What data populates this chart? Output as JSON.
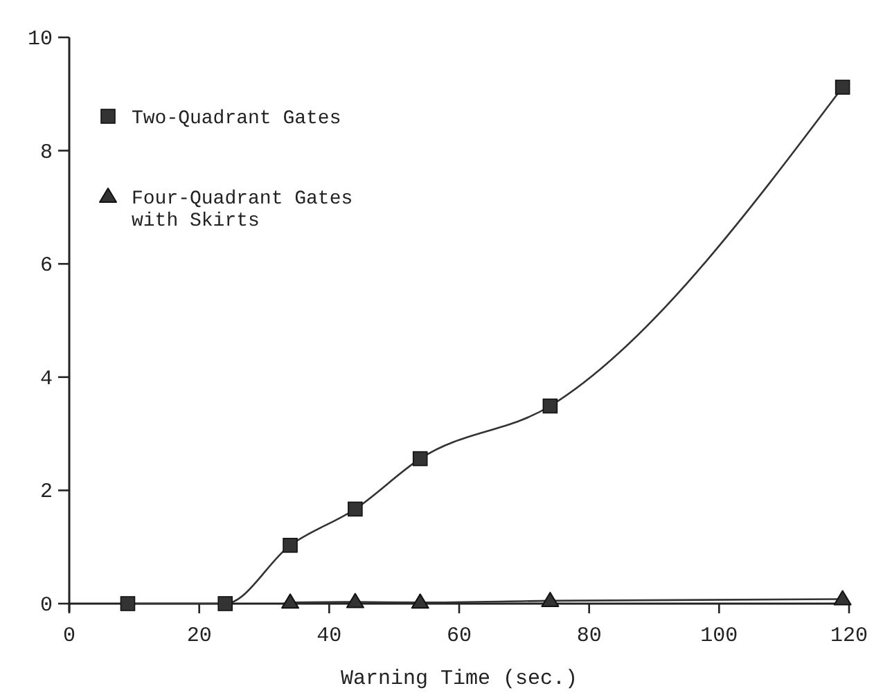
{
  "chart_data": {
    "type": "line",
    "xlabel": "Warning Time (sec.)",
    "x": [
      9,
      24,
      34,
      44,
      54,
      74,
      119
    ],
    "series": [
      {
        "name": "Two-Quadrant Gates",
        "color": "#333333",
        "marker": "square",
        "values": [
          0,
          0,
          1.03,
          1.67,
          2.56,
          3.49,
          9.12
        ]
      },
      {
        "name": "Four-Quadrant Gates\nwith Skirts",
        "color": "#333333",
        "marker": "triangle",
        "x": [
          34,
          44,
          54,
          74,
          119
        ],
        "values": [
          0.02,
          0.03,
          0.02,
          0.05,
          0.08
        ]
      }
    ],
    "xlim": [
      0,
      120
    ],
    "xticks": [
      0,
      20,
      40,
      60,
      80,
      100,
      120
    ],
    "ylim": [
      0,
      10
    ],
    "yticks": [
      0,
      2,
      4,
      6,
      8,
      10
    ],
    "grid": false,
    "legend": "top left",
    "line_style": "solid"
  }
}
